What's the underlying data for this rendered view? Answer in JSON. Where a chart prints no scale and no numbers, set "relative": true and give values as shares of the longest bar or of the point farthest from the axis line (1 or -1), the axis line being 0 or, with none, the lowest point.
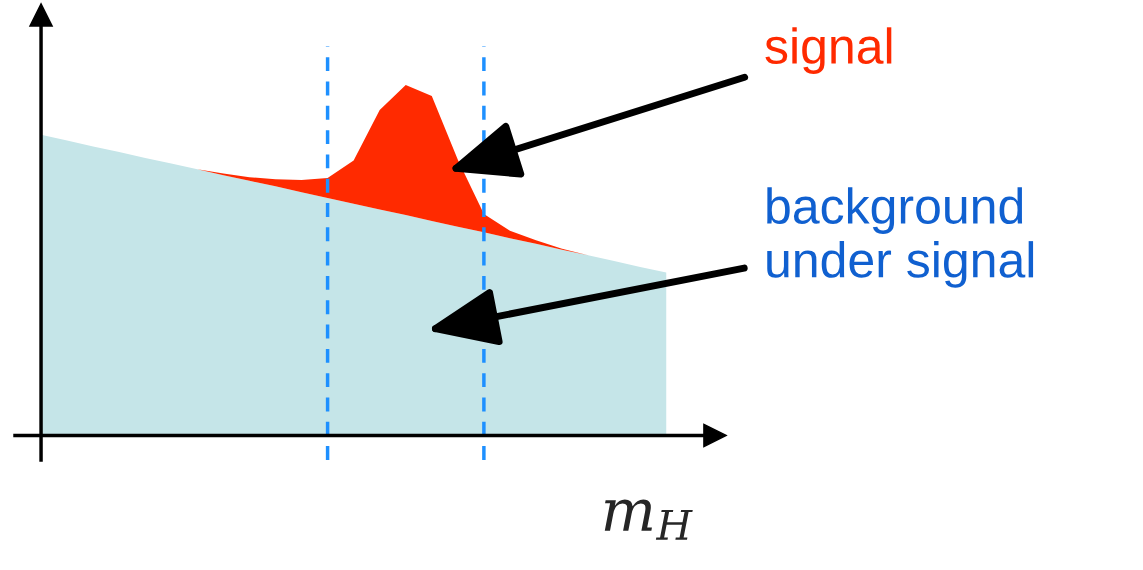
{
  "chart_data": {
    "type": "area",
    "relative": true,
    "stacked": true,
    "xlabel": "m$_{H}$",
    "categories": [
      null,
      null,
      null,
      null,
      null,
      null,
      null,
      null,
      null,
      null,
      null,
      null,
      null,
      null,
      null,
      null,
      null,
      null,
      null,
      null,
      null,
      null,
      null,
      null,
      null
    ],
    "series": [
      {
        "name": "background under signal",
        "color": "#c5e5e8",
        "values": [
          0.858,
          0.842,
          0.825,
          0.809,
          0.792,
          0.776,
          0.76,
          0.743,
          0.727,
          0.711,
          0.694,
          0.678,
          0.661,
          0.645,
          0.629,
          0.612,
          0.596,
          0.58,
          0.563,
          0.547,
          0.53,
          0.514,
          0.498,
          0.481,
          0.465
        ]
      },
      {
        "name": "signal",
        "color": "#ff2a00",
        "values": [
          0,
          0,
          0,
          0,
          0,
          0,
          0,
          0.005,
          0.01,
          0.02,
          0.035,
          0.057,
          0.124,
          0.284,
          0.371,
          0.357,
          0.191,
          0.052,
          0.021,
          0.01,
          0.003,
          0,
          0,
          0,
          0
        ]
      }
    ],
    "legend": false,
    "grid": false
  }
}
